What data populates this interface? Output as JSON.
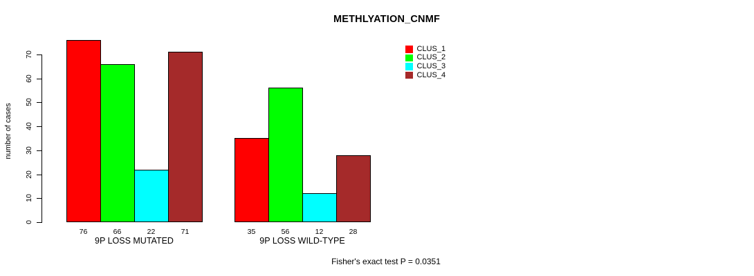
{
  "title": "METHLYATION_CNMF",
  "ylabel": "number of cases",
  "footnote": "Fisher's exact test P = 0.0351",
  "chart_data": {
    "type": "bar",
    "grouped": true,
    "title": "METHLYATION_CNMF",
    "xlabel": "",
    "ylabel": "number of cases",
    "categories": [
      "9P LOSS MUTATED",
      "9P LOSS WILD-TYPE"
    ],
    "series": [
      {
        "name": "CLUS_1",
        "color": "#ff0000",
        "values": [
          76,
          35
        ]
      },
      {
        "name": "CLUS_2",
        "color": "#00ff00",
        "values": [
          66,
          56
        ]
      },
      {
        "name": "CLUS_3",
        "color": "#00ffff",
        "values": [
          22,
          12
        ]
      },
      {
        "name": "CLUS_4",
        "color": "#a52a2a",
        "values": [
          71,
          28
        ]
      }
    ],
    "bar_value_labels": [
      [
        "76",
        "66",
        "22",
        "71"
      ],
      [
        "35",
        "56",
        "12",
        "28"
      ]
    ],
    "yticks": [
      0,
      10,
      20,
      30,
      40,
      50,
      60,
      70
    ],
    "axis_range": [
      0,
      70
    ],
    "grid": false,
    "legend_position": "top-right",
    "annotation": "Fisher's exact test P = 0.0351"
  }
}
